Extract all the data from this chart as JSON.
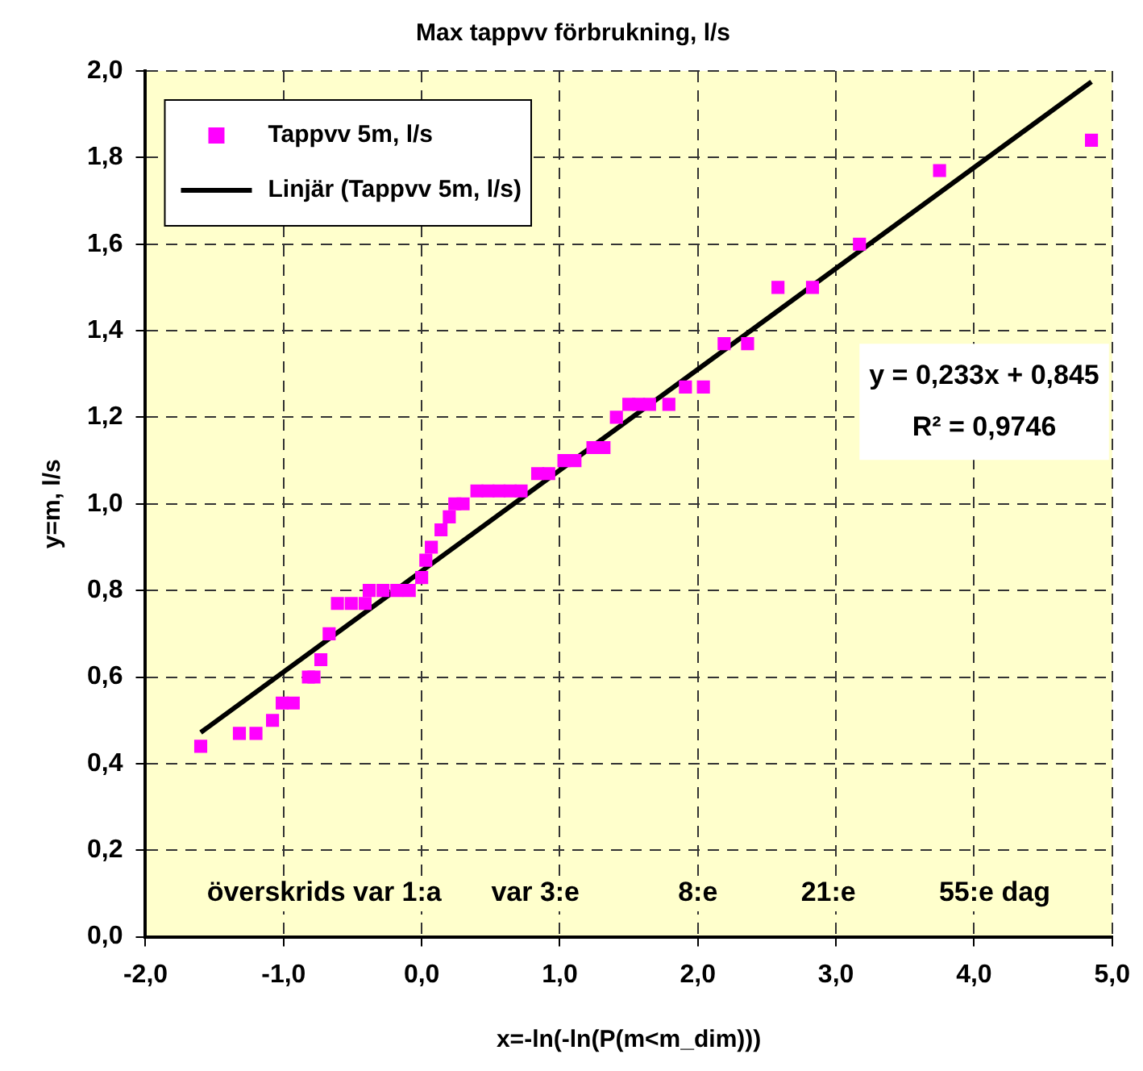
{
  "chart_data": {
    "type": "scatter",
    "title": "Max tappvv förbrukning, l/s",
    "xlabel": "x=-ln(-ln(P(m<m_dim)))",
    "ylabel": "y=m, l/s",
    "xlim": [
      -2,
      5
    ],
    "ylim": [
      0,
      2
    ],
    "xticks": [
      {
        "value": -2,
        "label": "-2,0"
      },
      {
        "value": -1,
        "label": "-1,0"
      },
      {
        "value": 0,
        "label": "0,0"
      },
      {
        "value": 1,
        "label": "1,0"
      },
      {
        "value": 2,
        "label": "2,0"
      },
      {
        "value": 3,
        "label": "3,0"
      },
      {
        "value": 4,
        "label": "4,0"
      },
      {
        "value": 5,
        "label": "5,0"
      }
    ],
    "yticks": [
      {
        "value": 0,
        "label": "0,0"
      },
      {
        "value": 0.2,
        "label": "0,2"
      },
      {
        "value": 0.4,
        "label": "0,4"
      },
      {
        "value": 0.6,
        "label": "0,6"
      },
      {
        "value": 0.8,
        "label": "0,8"
      },
      {
        "value": 1,
        "label": "1,0"
      },
      {
        "value": 1.2,
        "label": "1,2"
      },
      {
        "value": 1.4,
        "label": "1,4"
      },
      {
        "value": 1.6,
        "label": "1,6"
      },
      {
        "value": 1.8,
        "label": "1,8"
      },
      {
        "value": 2,
        "label": "2,0"
      }
    ],
    "grid": true,
    "legend": "top left",
    "series": [
      {
        "name": "Tappvv 5m, l/s",
        "type": "scatter",
        "marker": "square",
        "color": "#ff00ff",
        "x": [
          -1.6,
          -1.32,
          -1.2,
          -1.08,
          -1.01,
          -0.93,
          -0.82,
          -0.78,
          -0.73,
          -0.67,
          -0.61,
          -0.51,
          -0.41,
          -0.38,
          -0.28,
          -0.18,
          -0.09,
          0.0,
          0.03,
          0.07,
          0.14,
          0.2,
          0.24,
          0.3,
          0.4,
          0.48,
          0.56,
          0.64,
          0.72,
          0.84,
          0.92,
          1.03,
          1.11,
          1.24,
          1.32,
          1.41,
          1.5,
          1.57,
          1.65,
          1.79,
          1.91,
          2.04,
          2.19,
          2.36,
          2.58,
          2.83,
          3.17,
          3.75,
          4.85
        ],
        "values": [
          0.44,
          0.47,
          0.47,
          0.5,
          0.54,
          0.54,
          0.6,
          0.6,
          0.64,
          0.7,
          0.77,
          0.77,
          0.77,
          0.8,
          0.8,
          0.8,
          0.8,
          0.83,
          0.87,
          0.9,
          0.94,
          0.97,
          1.0,
          1.0,
          1.03,
          1.03,
          1.03,
          1.03,
          1.03,
          1.07,
          1.07,
          1.1,
          1.1,
          1.13,
          1.13,
          1.2,
          1.23,
          1.23,
          1.23,
          1.23,
          1.27,
          1.27,
          1.37,
          1.37,
          1.5,
          1.5,
          1.6,
          1.77,
          1.84
        ]
      },
      {
        "name": "Linjär (Tappvv 5m, l/s)",
        "type": "line",
        "marker": "none",
        "line_style": "solid",
        "color": "#000000",
        "x": [
          -1.6,
          4.85
        ],
        "values": [
          0.472,
          1.975
        ]
      }
    ],
    "annotations": [
      "y = 0,233x + 0,845",
      "R² = 0,9746",
      "överskrids var 1:a",
      "var 3:e",
      "8:e",
      "21:e",
      "55:e dag"
    ]
  }
}
